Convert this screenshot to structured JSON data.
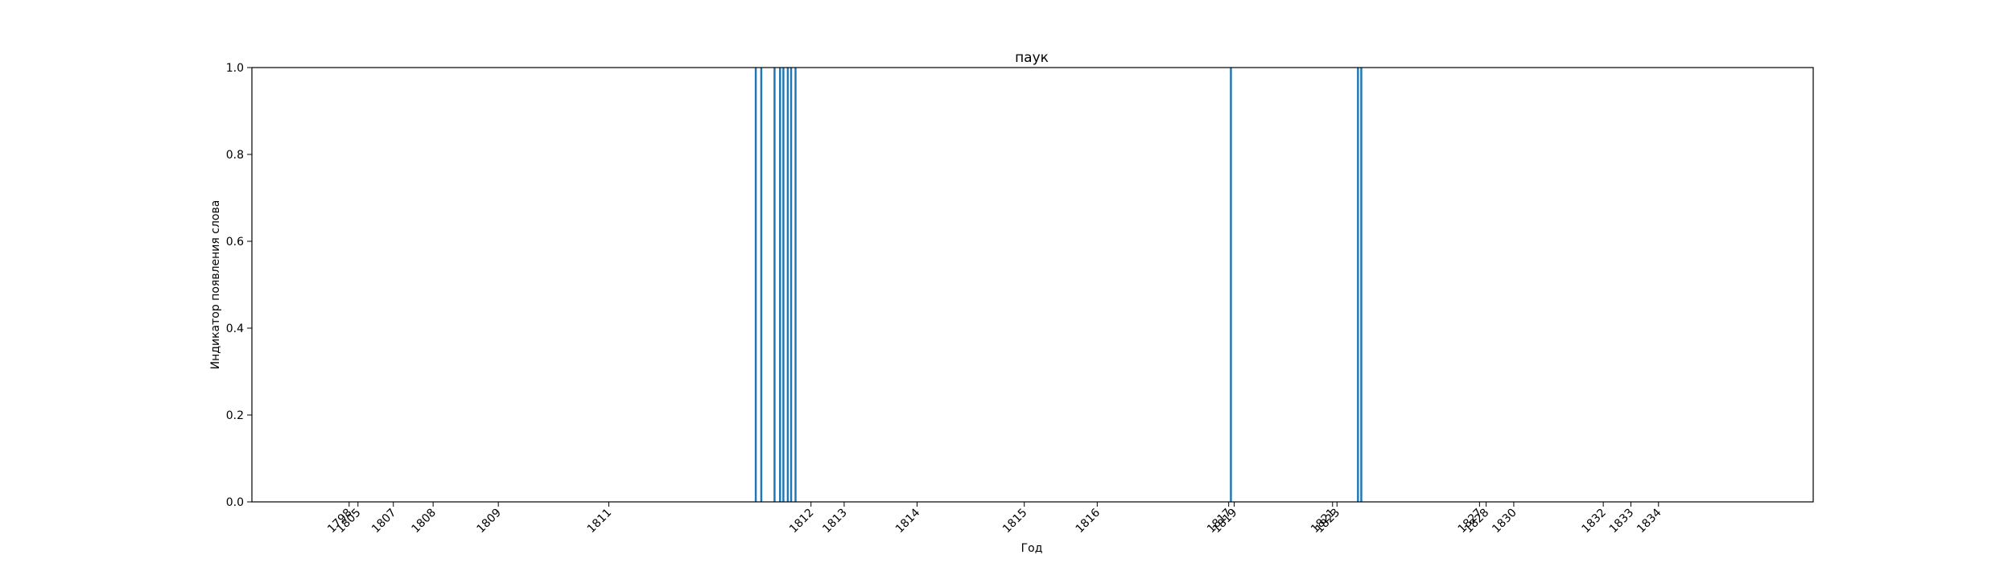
{
  "chart_data": {
    "type": "bar",
    "title": "паук",
    "xlabel": "Год",
    "ylabel": "Индикатор появления слова",
    "ylim": [
      0,
      1
    ],
    "yticks": [
      "0.0",
      "0.2",
      "0.4",
      "0.6",
      "0.8",
      "1.0"
    ],
    "bar_color": "#1f77b4",
    "grid": false,
    "x_ticks": [
      {
        "label": "1798",
        "pos": 1798.0
      },
      {
        "label": "1805",
        "pos": 1798.8
      },
      {
        "label": "1807",
        "pos": 1802.0
      },
      {
        "label": "1808",
        "pos": 1805.6
      },
      {
        "label": "1809",
        "pos": 1811.5
      },
      {
        "label": "1811",
        "pos": 1821.5
      },
      {
        "label": "1812",
        "pos": 1839.8
      },
      {
        "label": "1813",
        "pos": 1842.8
      },
      {
        "label": "1814",
        "pos": 1849.4
      },
      {
        "label": "1815",
        "pos": 1859.1
      },
      {
        "label": "1816",
        "pos": 1865.7
      },
      {
        "label": "1817",
        "pos": 1877.6
      },
      {
        "label": "1819",
        "pos": 1878.1
      },
      {
        "label": "1821",
        "pos": 1887.0
      },
      {
        "label": "1823",
        "pos": 1887.4
      },
      {
        "label": "1827",
        "pos": 1900.3
      },
      {
        "label": "1828",
        "pos": 1900.9
      },
      {
        "label": "1830",
        "pos": 1903.4
      },
      {
        "label": "1832",
        "pos": 1911.5
      },
      {
        "label": "1833",
        "pos": 1914.0
      },
      {
        "label": "1834",
        "pos": 1916.5
      }
    ],
    "x": [
      1834.8,
      1835.3,
      1836.5,
      1837.0,
      1837.3,
      1837.7,
      1838.0,
      1838.4,
      1877.8,
      1889.3,
      1889.6
    ],
    "values": [
      1,
      1,
      1,
      1,
      1,
      1,
      1,
      1,
      1,
      1,
      1
    ]
  }
}
